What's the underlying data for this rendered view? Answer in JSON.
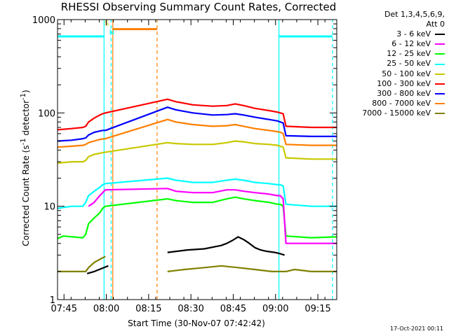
{
  "chart_data": {
    "type": "line",
    "title": "RHESSI Observing Summary Count Rates, Corrected",
    "xlabel": "Start Time (30-Nov-07 07:42:42)",
    "ylabel_main": "Corrected Count Rate (s",
    "ylabel_sup1": "-1",
    "ylabel_mid": " detector",
    "ylabel_sup2": "-1",
    "ylabel_end": ")",
    "x_unit": "minutes since 07:42:42",
    "xlim": [
      0,
      99
    ],
    "ylim": [
      1,
      1000
    ],
    "yscale": "log",
    "x_ticks": [
      {
        "x": 2.3,
        "label": "07:45"
      },
      {
        "x": 17.3,
        "label": "08:00"
      },
      {
        "x": 32.3,
        "label": "08:15"
      },
      {
        "x": 47.3,
        "label": "08:30"
      },
      {
        "x": 62.3,
        "label": "08:45"
      },
      {
        "x": 77.3,
        "label": "09:00"
      },
      {
        "x": 92.3,
        "label": "09:15"
      }
    ],
    "y_ticks": [
      {
        "y": 1,
        "label": "1"
      },
      {
        "y": 10,
        "label": "10"
      },
      {
        "y": 100,
        "label": "100"
      },
      {
        "y": 1000,
        "label": "1000"
      }
    ],
    "legend_header": [
      "Det 1,3,4,5,6,9,",
      "Att 0"
    ],
    "legend_position": "right",
    "series": [
      {
        "name": "3 - 6 keV",
        "color": "#000000",
        "x": [
          0,
          10,
          10.5,
          13,
          18,
          38,
          39,
          46,
          52,
          58,
          60,
          62,
          64,
          66,
          68,
          70,
          72,
          74,
          77,
          79,
          80.5,
          81,
          99
        ],
        "y": [
          null,
          null,
          1.9,
          2.0,
          2.3,
          null,
          3.2,
          3.4,
          3.5,
          3.8,
          4.0,
          4.3,
          4.7,
          4.4,
          4.0,
          3.6,
          3.4,
          3.3,
          3.2,
          3.1,
          3.0,
          null,
          null
        ]
      },
      {
        "name": "6 - 12 keV",
        "color": "#ff00ff",
        "x": [
          0,
          10,
          11,
          13,
          14,
          15,
          16,
          17,
          39,
          42,
          48,
          55,
          60,
          63,
          66,
          70,
          75,
          78,
          79,
          80,
          81,
          82,
          99
        ],
        "y": [
          null,
          null,
          10,
          11,
          12,
          13,
          14,
          15,
          15.5,
          14.5,
          14,
          14,
          15,
          15,
          14.5,
          14,
          13.5,
          13,
          13,
          12,
          4,
          4,
          4
        ]
      },
      {
        "name": "12 - 25 keV",
        "color": "#00ff00",
        "x": [
          0,
          2,
          9,
          10,
          11,
          13,
          15,
          16,
          17,
          39,
          42,
          48,
          55,
          60,
          63,
          66,
          70,
          75,
          78,
          79,
          80,
          81,
          90,
          99
        ],
        "y": [
          4.5,
          4.8,
          4.6,
          5,
          6.5,
          7.5,
          8.5,
          9.5,
          10,
          12,
          11.5,
          11,
          11,
          12,
          12.5,
          12,
          11.5,
          11,
          10.5,
          10.5,
          10,
          4.8,
          4.6,
          4.7
        ]
      },
      {
        "name": "25 - 50 keV",
        "color": "#00ffff",
        "x": [
          0,
          5,
          9,
          10,
          11,
          13,
          15,
          16,
          17,
          39,
          42,
          48,
          55,
          60,
          63,
          66,
          70,
          75,
          78,
          79,
          80,
          81,
          90,
          99
        ],
        "y": [
          9.5,
          10,
          10,
          11,
          13,
          14.5,
          16,
          17,
          17.5,
          20,
          19,
          18,
          18,
          19,
          19.5,
          19,
          18,
          17.5,
          17,
          17,
          16.5,
          10.5,
          10,
          10
        ]
      },
      {
        "name": "50 - 100 keV",
        "color": "#c8c800",
        "x": [
          0,
          5,
          9,
          10,
          11,
          13,
          15,
          16,
          17,
          39,
          42,
          48,
          55,
          60,
          63,
          66,
          70,
          75,
          78,
          79,
          80,
          81,
          90,
          99
        ],
        "y": [
          29,
          30,
          30,
          31,
          34,
          36,
          37,
          37.5,
          38,
          48,
          47,
          46,
          46,
          48,
          50,
          49,
          47,
          46,
          45,
          44,
          43,
          33,
          32,
          32
        ]
      },
      {
        "name": "100 - 300 keV",
        "color": "#ff0000",
        "x": [
          0,
          5,
          9,
          10,
          11,
          13,
          15,
          16,
          17,
          39,
          42,
          48,
          55,
          60,
          63,
          66,
          70,
          75,
          78,
          79,
          80,
          81,
          90,
          99
        ],
        "y": [
          66,
          68,
          70,
          72,
          80,
          88,
          95,
          98,
          100,
          140,
          132,
          122,
          118,
          120,
          125,
          120,
          112,
          106,
          102,
          100,
          98,
          72,
          70,
          70
        ]
      },
      {
        "name": "300 - 800 keV",
        "color": "#0000ff",
        "x": [
          0,
          5,
          9,
          10,
          11,
          13,
          15,
          16,
          17,
          39,
          42,
          48,
          55,
          60,
          63,
          66,
          70,
          75,
          78,
          79,
          80,
          81,
          90,
          99
        ],
        "y": [
          50,
          51,
          53,
          54,
          58,
          62,
          64,
          65,
          65,
          115,
          108,
          100,
          95,
          96,
          98,
          95,
          90,
          85,
          82,
          80,
          78,
          57,
          56,
          56
        ]
      },
      {
        "name": "800 - 7000 keV",
        "color": "#ff7f00",
        "x": [
          0,
          5,
          9,
          10,
          11,
          13,
          15,
          16,
          17,
          39,
          42,
          48,
          55,
          60,
          63,
          66,
          70,
          75,
          78,
          79,
          80,
          81,
          90,
          99
        ],
        "y": [
          43,
          44,
          45,
          46,
          48,
          50,
          52,
          52.5,
          53,
          85,
          80,
          75,
          72,
          73,
          75,
          72,
          68,
          65,
          63,
          62,
          60,
          46,
          45,
          45
        ]
      },
      {
        "name": "7000 - 15000 keV",
        "color": "#808000",
        "x": [
          0,
          10,
          11,
          13,
          15,
          16,
          17,
          38,
          39,
          45,
          52,
          58,
          64,
          70,
          76,
          79,
          80,
          81,
          84,
          90,
          99
        ],
        "y": [
          2.0,
          2.0,
          2.2,
          2.5,
          2.7,
          2.8,
          2.9,
          null,
          2.0,
          2.1,
          2.2,
          2.3,
          2.2,
          2.1,
          2.0,
          2.0,
          2.0,
          2.0,
          2.1,
          2.0,
          2.0
        ]
      }
    ],
    "annotations": [
      {
        "type": "vline",
        "x": 16.5,
        "color": "#00ffff",
        "style": "solid",
        "y_from": 1,
        "y_to": 1000
      },
      {
        "type": "vline",
        "x": 19.0,
        "color": "#00ffff",
        "style": "dashed",
        "y_from": 1,
        "y_to": 1000
      },
      {
        "type": "vline",
        "x": 78.5,
        "color": "#00ffff",
        "style": "solid",
        "y_from": 1,
        "y_to": 1000
      },
      {
        "type": "vline",
        "x": 97.5,
        "color": "#00ffff",
        "style": "dashed",
        "y_from": 1,
        "y_to": 1000
      },
      {
        "type": "vline",
        "x": 19.6,
        "color": "#ff7f00",
        "style": "solid",
        "y_from": 1,
        "y_to": 1000
      },
      {
        "type": "vline",
        "x": 35.3,
        "color": "#ff7f00",
        "style": "dashed",
        "y_from": 1,
        "y_to": 1000
      },
      {
        "type": "hline",
        "x_from": 0,
        "x_to": 16.5,
        "y": 660,
        "color": "#00ffff"
      },
      {
        "type": "hline",
        "x_from": 78.5,
        "x_to": 97.5,
        "y": 660,
        "color": "#00ffff"
      },
      {
        "type": "hline",
        "x_from": 19.6,
        "x_to": 35.3,
        "y": 790,
        "color": "#ff7f00"
      },
      {
        "type": "text",
        "x": 16.6,
        "y": 860,
        "text": "S",
        "color": "#c8c800"
      },
      {
        "type": "text",
        "x": 18.3,
        "y": 690,
        "text": "N",
        "color": "#00ffff"
      }
    ]
  },
  "footer": {
    "timestamp": "17-Oct-2021 00:11"
  }
}
